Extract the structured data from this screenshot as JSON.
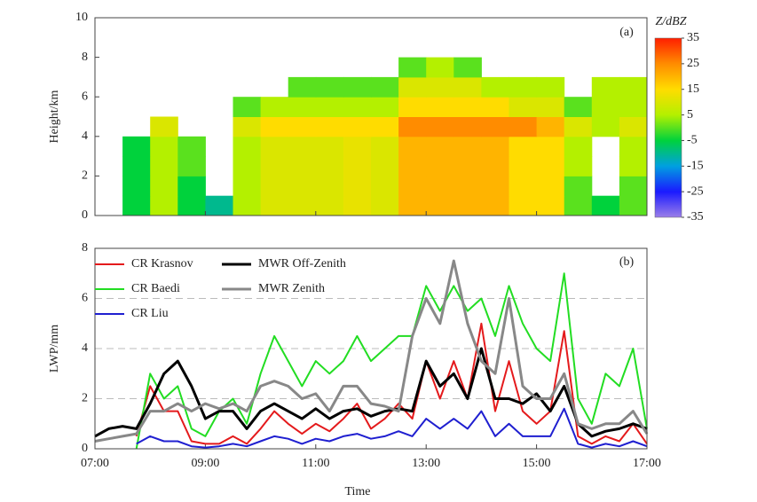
{
  "chart_data": [
    {
      "type": "heatmap",
      "panel_label": "(a)",
      "ylabel": "Height/km",
      "colorbar_label": "Z/dBZ",
      "xlim": [
        7,
        17
      ],
      "ylim": [
        0,
        10
      ],
      "yticks": [
        0,
        2,
        4,
        6,
        8,
        10
      ],
      "x_bins": [
        7,
        7.5,
        8,
        8.5,
        9,
        9.5,
        10,
        10.5,
        11,
        11.5,
        12,
        12.5,
        13,
        13.5,
        14,
        14.5,
        15,
        15.5,
        16,
        16.5,
        17
      ],
      "y_bins": [
        0,
        1,
        2,
        3,
        4,
        5,
        6,
        7,
        8
      ],
      "values": [
        [
          null,
          -5,
          5,
          -5,
          -10,
          5,
          10,
          10,
          10,
          12,
          10,
          20,
          20,
          20,
          20,
          15,
          15,
          0,
          -5,
          0
        ],
        [
          null,
          -5,
          5,
          -5,
          null,
          5,
          10,
          10,
          10,
          12,
          10,
          20,
          20,
          20,
          20,
          15,
          15,
          0,
          null,
          0
        ],
        [
          null,
          -5,
          5,
          0,
          null,
          5,
          10,
          10,
          10,
          12,
          10,
          20,
          20,
          20,
          20,
          15,
          15,
          5,
          null,
          5
        ],
        [
          null,
          -5,
          5,
          0,
          null,
          5,
          10,
          10,
          10,
          12,
          10,
          20,
          20,
          20,
          20,
          15,
          15,
          5,
          null,
          5
        ],
        [
          null,
          null,
          10,
          null,
          null,
          10,
          15,
          15,
          15,
          15,
          15,
          25,
          25,
          25,
          25,
          25,
          20,
          10,
          5,
          10
        ],
        [
          null,
          null,
          null,
          null,
          null,
          0,
          5,
          5,
          5,
          5,
          5,
          15,
          15,
          15,
          15,
          10,
          10,
          0,
          5,
          5
        ],
        [
          null,
          null,
          null,
          null,
          null,
          null,
          null,
          0,
          0,
          0,
          0,
          10,
          10,
          10,
          5,
          5,
          5,
          null,
          5,
          5
        ],
        [
          null,
          null,
          null,
          null,
          null,
          null,
          null,
          null,
          null,
          null,
          null,
          0,
          5,
          0,
          null,
          null,
          null,
          null,
          null,
          null
        ]
      ],
      "clim": [
        -35,
        35
      ],
      "cticks": [
        35,
        25,
        15,
        5,
        -5,
        -15,
        -25,
        -35
      ],
      "colors": [
        "#9b7fe8",
        "#1a1aff",
        "#00a0e0",
        "#00d23c",
        "#b4f000",
        "#ffdc00",
        "#ff8c00",
        "#ff1e00"
      ]
    },
    {
      "type": "line",
      "panel_label": "(b)",
      "ylabel": "LWP/mm",
      "xlabel": "Time",
      "xlim": [
        7,
        17
      ],
      "ylim": [
        0,
        8
      ],
      "yticks": [
        0,
        2,
        4,
        6,
        8
      ],
      "grid": true,
      "xticks": [
        {
          "value": 7,
          "label": "07:00"
        },
        {
          "value": 9,
          "label": "09:00"
        },
        {
          "value": 11,
          "label": "11:00"
        },
        {
          "value": 13,
          "label": "13:00"
        },
        {
          "value": 15,
          "label": "15:00"
        },
        {
          "value": 17,
          "label": "17:00"
        }
      ],
      "x": [
        7,
        7.25,
        7.5,
        7.75,
        8,
        8.25,
        8.5,
        8.75,
        9,
        9.25,
        9.5,
        9.75,
        10,
        10.25,
        10.5,
        10.75,
        11,
        11.25,
        11.5,
        11.75,
        12,
        12.25,
        12.5,
        12.75,
        13,
        13.25,
        13.5,
        13.75,
        14,
        14.25,
        14.5,
        14.75,
        15,
        15.25,
        15.5,
        15.75,
        16,
        16.25,
        16.5,
        16.75,
        17
      ],
      "series": [
        {
          "name": "CR Krasnov",
          "color": "#e41a1c",
          "values": [
            null,
            null,
            null,
            0.5,
            2.5,
            1.5,
            1.5,
            0.3,
            0.2,
            0.2,
            0.5,
            0.2,
            0.8,
            1.5,
            1.0,
            0.6,
            1.0,
            0.7,
            1.2,
            1.8,
            0.8,
            1.2,
            1.8,
            1.2,
            3.5,
            2.0,
            3.5,
            2.0,
            5.0,
            1.5,
            3.5,
            1.5,
            1.0,
            1.5,
            4.7,
            0.5,
            0.2,
            0.5,
            0.3,
            1.0,
            0.2
          ]
        },
        {
          "name": "CR Baedi",
          "color": "#22dd22",
          "values": [
            null,
            null,
            null,
            0,
            3,
            2,
            2.5,
            0.8,
            0.5,
            1.5,
            2,
            1,
            3,
            4.5,
            3.5,
            2.5,
            3.5,
            3,
            3.5,
            4.5,
            3.5,
            4,
            4.5,
            4.5,
            6.5,
            5.5,
            6.5,
            5.5,
            6,
            4.5,
            6.5,
            5,
            4,
            3.5,
            7,
            2,
            1,
            3,
            2.5,
            4,
            0.8
          ]
        },
        {
          "name": "CR Liu",
          "color": "#1f1fd0",
          "values": [
            null,
            null,
            null,
            0.2,
            0.5,
            0.3,
            0.3,
            0.1,
            0.05,
            0.1,
            0.2,
            0.1,
            0.3,
            0.5,
            0.4,
            0.2,
            0.4,
            0.3,
            0.5,
            0.6,
            0.4,
            0.5,
            0.7,
            0.5,
            1.2,
            0.8,
            1.2,
            0.8,
            1.5,
            0.5,
            1.0,
            0.5,
            0.5,
            0.5,
            1.6,
            0.2,
            0.05,
            0.2,
            0.1,
            0.3,
            0.1
          ]
        },
        {
          "name": "MWR Off-Zenith",
          "color": "#000000",
          "values": [
            0.5,
            0.8,
            0.9,
            0.8,
            1.8,
            3.0,
            3.5,
            2.5,
            1.2,
            1.5,
            1.5,
            0.8,
            1.5,
            1.8,
            1.5,
            1.2,
            1.6,
            1.2,
            1.5,
            1.6,
            1.3,
            1.5,
            1.6,
            1.5,
            3.5,
            2.5,
            3.0,
            2.0,
            4.0,
            2.0,
            2.0,
            1.8,
            2.2,
            1.5,
            2.5,
            1.0,
            0.5,
            0.7,
            0.8,
            1.0,
            0.8
          ]
        },
        {
          "name": "MWR Zenith",
          "color": "#888888",
          "values": [
            0.3,
            0.4,
            0.5,
            0.6,
            1.5,
            1.5,
            1.8,
            1.5,
            1.8,
            1.6,
            1.8,
            1.5,
            2.5,
            2.7,
            2.5,
            2.0,
            2.2,
            1.5,
            2.5,
            2.5,
            1.8,
            1.7,
            1.5,
            4.5,
            6.0,
            5.0,
            7.5,
            5.0,
            3.5,
            3.0,
            6.0,
            2.5,
            2.0,
            2.0,
            3.0,
            1.0,
            0.8,
            1.0,
            1.0,
            1.5,
            0.6
          ]
        }
      ]
    }
  ]
}
